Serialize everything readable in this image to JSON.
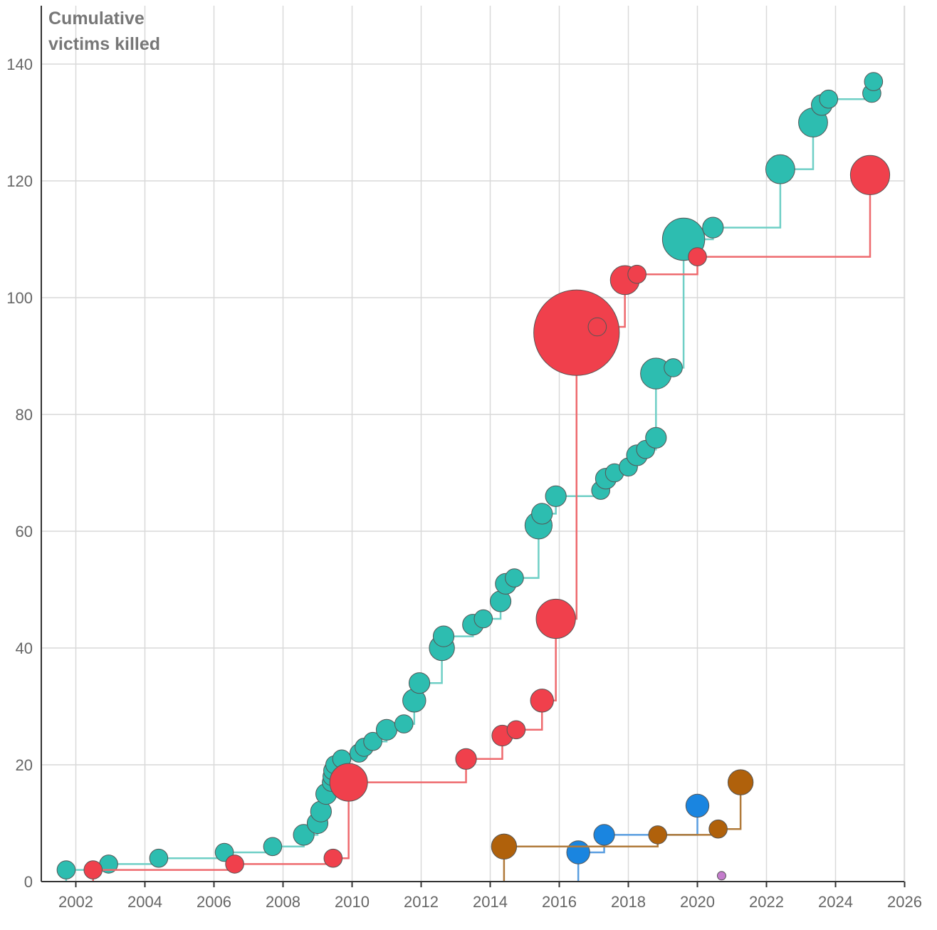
{
  "chart_data": {
    "type": "line",
    "title": "",
    "ylabel": [
      "Cumulative",
      "victims killed"
    ],
    "xlabel": "",
    "xlim": [
      2001,
      2026
    ],
    "ylim": [
      0,
      145
    ],
    "x_ticks": [
      2002,
      2004,
      2006,
      2008,
      2010,
      2012,
      2014,
      2016,
      2018,
      2020,
      2022,
      2024,
      2026
    ],
    "y_ticks": [
      0,
      20,
      40,
      60,
      80,
      100,
      120,
      140
    ],
    "grid": true,
    "step": true,
    "series": [
      {
        "name": "teal",
        "color": "#2dbdb0",
        "line_color": "#6fcfc6",
        "points": [
          {
            "x": 2001.72,
            "y": 2,
            "r": 3
          },
          {
            "x": 2002.95,
            "y": 3,
            "r": 3
          },
          {
            "x": 2004.4,
            "y": 4,
            "r": 3
          },
          {
            "x": 2006.3,
            "y": 5,
            "r": 3
          },
          {
            "x": 2007.7,
            "y": 6,
            "r": 3
          },
          {
            "x": 2008.6,
            "y": 8,
            "r": 4
          },
          {
            "x": 2009.0,
            "y": 10,
            "r": 4
          },
          {
            "x": 2009.1,
            "y": 12,
            "r": 4
          },
          {
            "x": 2009.25,
            "y": 15,
            "r": 4
          },
          {
            "x": 2009.4,
            "y": 17,
            "r": 3
          },
          {
            "x": 2009.42,
            "y": 18,
            "r": 3
          },
          {
            "x": 2009.44,
            "y": 19,
            "r": 3
          },
          {
            "x": 2009.5,
            "y": 20,
            "r": 3
          },
          {
            "x": 2009.7,
            "y": 21,
            "r": 3
          },
          {
            "x": 2010.2,
            "y": 22,
            "r": 3
          },
          {
            "x": 2010.35,
            "y": 23,
            "r": 3
          },
          {
            "x": 2010.6,
            "y": 24,
            "r": 3
          },
          {
            "x": 2011.0,
            "y": 26,
            "r": 4
          },
          {
            "x": 2011.5,
            "y": 27,
            "r": 3
          },
          {
            "x": 2011.8,
            "y": 31,
            "r": 5
          },
          {
            "x": 2011.95,
            "y": 34,
            "r": 4
          },
          {
            "x": 2012.6,
            "y": 40,
            "r": 6
          },
          {
            "x": 2012.65,
            "y": 42,
            "r": 4
          },
          {
            "x": 2013.5,
            "y": 44,
            "r": 4
          },
          {
            "x": 2013.8,
            "y": 45,
            "r": 3
          },
          {
            "x": 2014.3,
            "y": 48,
            "r": 4
          },
          {
            "x": 2014.45,
            "y": 51,
            "r": 4
          },
          {
            "x": 2014.7,
            "y": 52,
            "r": 3
          },
          {
            "x": 2015.4,
            "y": 61,
            "r": 7
          },
          {
            "x": 2015.5,
            "y": 63,
            "r": 4
          },
          {
            "x": 2015.9,
            "y": 66,
            "r": 4
          },
          {
            "x": 2017.2,
            "y": 67,
            "r": 3
          },
          {
            "x": 2017.35,
            "y": 69,
            "r": 4
          },
          {
            "x": 2017.6,
            "y": 70,
            "r": 3
          },
          {
            "x": 2018.0,
            "y": 71,
            "r": 3
          },
          {
            "x": 2018.25,
            "y": 73,
            "r": 4
          },
          {
            "x": 2018.5,
            "y": 74,
            "r": 3
          },
          {
            "x": 2018.8,
            "y": 76,
            "r": 4
          },
          {
            "x": 2018.8,
            "y": 87,
            "r": 9
          },
          {
            "x": 2019.3,
            "y": 88,
            "r": 3
          },
          {
            "x": 2019.6,
            "y": 110,
            "r": 16
          },
          {
            "x": 2020.45,
            "y": 112,
            "r": 4
          },
          {
            "x": 2022.4,
            "y": 122,
            "r": 8
          },
          {
            "x": 2023.35,
            "y": 130,
            "r": 8
          },
          {
            "x": 2023.6,
            "y": 133,
            "r": 4
          },
          {
            "x": 2023.8,
            "y": 134,
            "r": 3
          },
          {
            "x": 2025.05,
            "y": 135,
            "r": 3
          },
          {
            "x": 2025.1,
            "y": 137,
            "r": 3
          }
        ]
      },
      {
        "name": "red",
        "color": "#f0404c",
        "line_color": "#ee6a6e",
        "points": [
          {
            "x": 2002.5,
            "y": 2,
            "r": 3
          },
          {
            "x": 2006.6,
            "y": 3,
            "r": 3
          },
          {
            "x": 2009.45,
            "y": 4,
            "r": 3
          },
          {
            "x": 2009.9,
            "y": 17,
            "r": 13
          },
          {
            "x": 2013.3,
            "y": 21,
            "r": 4
          },
          {
            "x": 2014.35,
            "y": 25,
            "r": 4
          },
          {
            "x": 2014.75,
            "y": 26,
            "r": 3
          },
          {
            "x": 2015.5,
            "y": 31,
            "r": 5
          },
          {
            "x": 2015.9,
            "y": 45,
            "r": 14
          },
          {
            "x": 2016.5,
            "y": 94,
            "r": 49
          },
          {
            "x": 2017.1,
            "y": 95,
            "r": 3
          },
          {
            "x": 2017.9,
            "y": 103,
            "r": 8
          },
          {
            "x": 2018.25,
            "y": 104,
            "r": 3
          },
          {
            "x": 2020.0,
            "y": 107,
            "r": 3
          },
          {
            "x": 2025.0,
            "y": 121,
            "r": 14
          }
        ]
      },
      {
        "name": "blue",
        "color": "#1a85e0",
        "line_color": "#5a9ee0",
        "points": [
          {
            "x": 2016.55,
            "y": 5,
            "r": 5
          },
          {
            "x": 2017.3,
            "y": 8,
            "r": 4
          },
          {
            "x": 2020.0,
            "y": 13,
            "r": 5
          }
        ]
      },
      {
        "name": "brown",
        "color": "#b0610b",
        "line_color": "#b07a3a",
        "points": [
          {
            "x": 2014.4,
            "y": 6,
            "r": 6
          },
          {
            "x": 2018.85,
            "y": 8,
            "r": 3
          },
          {
            "x": 2020.6,
            "y": 9,
            "r": 3
          },
          {
            "x": 2021.25,
            "y": 17,
            "r": 6
          }
        ]
      },
      {
        "name": "purple",
        "color": "#c47ccc",
        "line_color": "#c47ccc",
        "points": [
          {
            "x": 2020.7,
            "y": 1,
            "r": 1
          }
        ]
      }
    ]
  }
}
